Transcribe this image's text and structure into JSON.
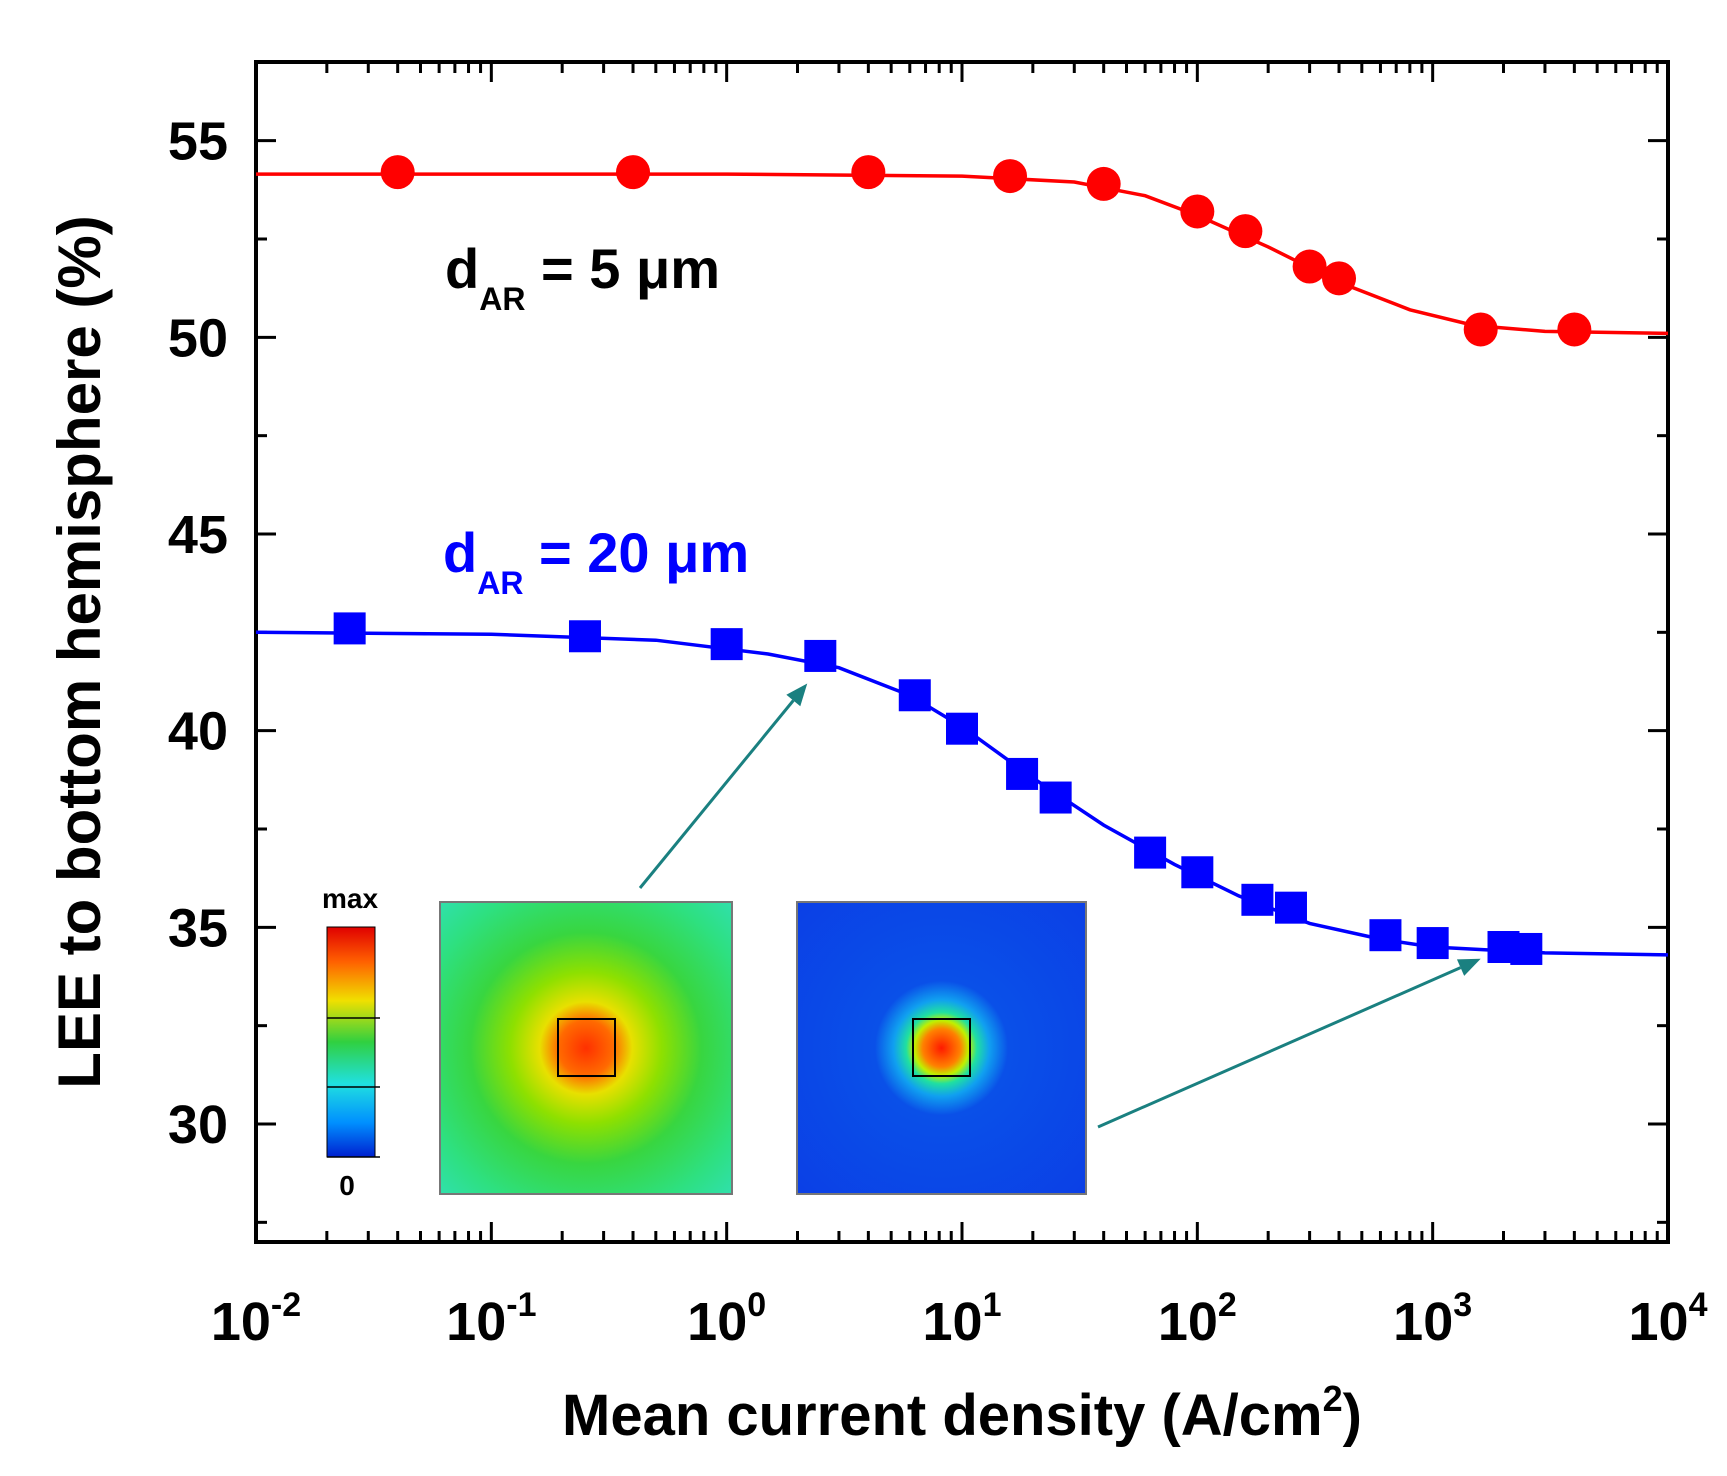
{
  "chart_data": {
    "type": "scatter",
    "xscale": "log",
    "xlim": [
      0.01,
      10000
    ],
    "ylim": [
      27,
      57
    ],
    "grid": false,
    "xlabel": {
      "main": "Mean current density (A/cm",
      "sup": "2",
      "end": ")"
    },
    "ylabel": "LEE to bottom hemisphere (%)",
    "x_ticks": [
      {
        "base": "10",
        "exp": "-2",
        "value": 0.01
      },
      {
        "base": "10",
        "exp": "-1",
        "value": 0.1
      },
      {
        "base": "10",
        "exp": "0",
        "value": 1
      },
      {
        "base": "10",
        "exp": "1",
        "value": 10
      },
      {
        "base": "10",
        "exp": "2",
        "value": 100
      },
      {
        "base": "10",
        "exp": "3",
        "value": 1000
      },
      {
        "base": "10",
        "exp": "4",
        "value": 10000
      }
    ],
    "y_ticks": [
      {
        "label": "30",
        "value": 30
      },
      {
        "label": "35",
        "value": 35
      },
      {
        "label": "40",
        "value": 40
      },
      {
        "label": "45",
        "value": 45
      },
      {
        "label": "50",
        "value": 50
      },
      {
        "label": "55",
        "value": 55
      }
    ],
    "series": [
      {
        "label_main": "d",
        "label_sub": "AR",
        "label_rest": " = 5 μm",
        "label_color": "#000000",
        "color": "#ff0000",
        "marker": "circle",
        "points": [
          [
            0.04,
            54.2
          ],
          [
            0.4,
            54.2
          ],
          [
            4,
            54.2
          ],
          [
            16,
            54.1
          ],
          [
            40,
            53.9
          ],
          [
            100,
            53.2
          ],
          [
            160,
            52.7
          ],
          [
            300,
            51.8
          ],
          [
            400,
            51.5
          ],
          [
            1600,
            50.2
          ],
          [
            4000,
            50.2
          ]
        ],
        "fit_curve": [
          [
            0.01,
            54.15
          ],
          [
            1,
            54.15
          ],
          [
            10,
            54.1
          ],
          [
            30,
            53.95
          ],
          [
            60,
            53.6
          ],
          [
            100,
            53.1
          ],
          [
            200,
            52.3
          ],
          [
            400,
            51.4
          ],
          [
            800,
            50.7
          ],
          [
            1500,
            50.3
          ],
          [
            3000,
            50.15
          ],
          [
            10000,
            50.1
          ]
        ]
      },
      {
        "label_main": "d",
        "label_sub": "AR",
        "label_rest": " = 20 μm",
        "label_color": "#0000ff",
        "color": "#0000ff",
        "marker": "square",
        "points": [
          [
            0.025,
            42.6
          ],
          [
            0.25,
            42.4
          ],
          [
            1,
            42.2
          ],
          [
            2.5,
            41.9
          ],
          [
            6.3,
            40.9
          ],
          [
            10,
            40.05
          ],
          [
            18,
            38.9
          ],
          [
            25,
            38.3
          ],
          [
            63,
            36.9
          ],
          [
            100,
            36.4
          ],
          [
            180,
            35.7
          ],
          [
            250,
            35.5
          ],
          [
            630,
            34.8
          ],
          [
            1000,
            34.6
          ],
          [
            2000,
            34.5
          ],
          [
            2500,
            34.45
          ]
        ],
        "fit_curve": [
          [
            0.01,
            42.5
          ],
          [
            0.1,
            42.45
          ],
          [
            0.5,
            42.3
          ],
          [
            1.5,
            41.95
          ],
          [
            3,
            41.6
          ],
          [
            6,
            40.9
          ],
          [
            10,
            40.1
          ],
          [
            20,
            38.8
          ],
          [
            40,
            37.6
          ],
          [
            80,
            36.6
          ],
          [
            150,
            35.8
          ],
          [
            300,
            35.1
          ],
          [
            600,
            34.7
          ],
          [
            1000,
            34.5
          ],
          [
            3000,
            34.35
          ],
          [
            10000,
            34.3
          ]
        ]
      }
    ],
    "inset": {
      "colorbar_max_label": "max",
      "colorbar_min_label": "0",
      "maps": [
        {
          "name": "current-density-map-low",
          "background": "#33e0a0",
          "points_to": [
            2.2,
            41.2
          ]
        },
        {
          "name": "current-density-map-high",
          "background": "#0b3fe6",
          "points_to": [
            1600,
            34.2
          ]
        }
      ],
      "arrow_color": "#1a8080"
    }
  }
}
